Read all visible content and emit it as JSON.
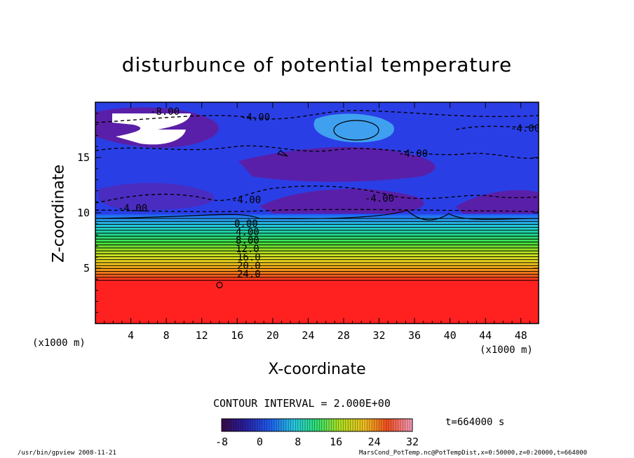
{
  "chart_data": {
    "type": "heatmap",
    "title": "disturbunce of potential temperature",
    "xlabel": "X-coordinate",
    "ylabel": "Z-coordinate",
    "x_unit": "(x1000 m)",
    "xlim": [
      0,
      50
    ],
    "ylim": [
      0,
      20
    ],
    "x_ticks": [
      4,
      8,
      12,
      16,
      20,
      24,
      28,
      32,
      36,
      40,
      44,
      48
    ],
    "y_ticks": [
      5,
      10,
      15
    ],
    "contour_interval_text": "CONTOUR INTERVAL = 2.000E+00",
    "contour_labels": [
      "-8.00",
      "-4.00",
      "-4.00",
      "-4.00",
      "-4.00",
      "-4.00",
      "-4.00",
      "0.00",
      "4.00",
      "8.00",
      "12.0",
      "16.0",
      "20.0",
      "24.0",
      "0"
    ],
    "colorbar": {
      "min": -8,
      "max": 32,
      "ticks": [
        -8,
        0,
        8,
        16,
        24,
        32
      ]
    },
    "time_text": "t=664000 s",
    "layers": [
      {
        "z": 0,
        "value": 30
      },
      {
        "z": 4,
        "value": 30
      },
      {
        "z": 5,
        "value": 24
      },
      {
        "z": 6,
        "value": 20
      },
      {
        "z": 7,
        "value": 14
      },
      {
        "z": 8,
        "value": 8
      },
      {
        "z": 9,
        "value": 2
      },
      {
        "z": 10,
        "value": -3
      },
      {
        "z": 20,
        "value": -4
      }
    ]
  },
  "footer": {
    "left": "/usr/bin/gpview   2008-11-21",
    "right": "MarsCond_PotTemp.nc@PotTempDist,x=0:50000,z=0:20000,t=664000"
  },
  "colors": {
    "red": "#ff2020",
    "blue": "#2a3ee6",
    "purple": "#5a1fa8",
    "light_blue": "#3fa0f0",
    "white_gap": "#ffffff"
  }
}
